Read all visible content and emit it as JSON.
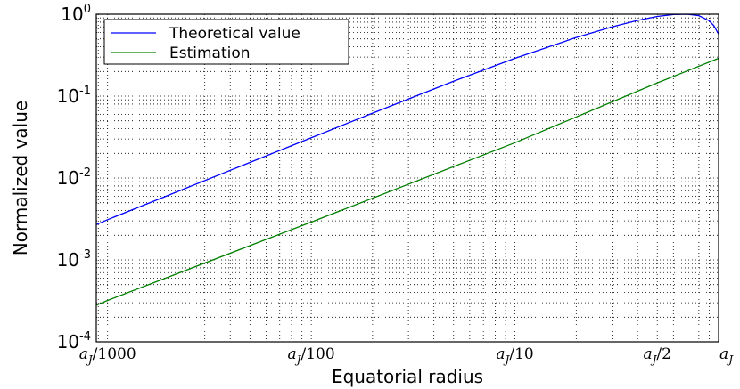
{
  "chart_data": {
    "type": "line",
    "xlabel": "Equatorial radius",
    "ylabel": "Normalized value",
    "x_scale": "log",
    "y_scale": "log",
    "xlim": [
      0.00088,
      1.0
    ],
    "ylim": [
      0.0001,
      1.0
    ],
    "grid": true,
    "grid_style": "dotted",
    "legend_position": "top-left",
    "x_ticks": [
      {
        "value": 0.001,
        "base": "a",
        "sub": "J",
        "suffix": "/1000"
      },
      {
        "value": 0.01,
        "base": "a",
        "sub": "J",
        "suffix": "/100"
      },
      {
        "value": 0.1,
        "base": "a",
        "sub": "J",
        "suffix": "/10"
      },
      {
        "value": 0.5,
        "base": "a",
        "sub": "J",
        "suffix": "/2"
      },
      {
        "value": 1.0,
        "base": "a",
        "sub": "J",
        "suffix": ""
      }
    ],
    "y_ticks": [
      {
        "value": 0.0001,
        "mantissa": "10",
        "exponent": "-4"
      },
      {
        "value": 0.001,
        "mantissa": "10",
        "exponent": "-3"
      },
      {
        "value": 0.01,
        "mantissa": "10",
        "exponent": "-2"
      },
      {
        "value": 0.1,
        "mantissa": "10",
        "exponent": "-1"
      },
      {
        "value": 1.0,
        "mantissa": "10",
        "exponent": "0"
      }
    ],
    "series": [
      {
        "name": "Theoretical value",
        "color": "#0000ff",
        "x": [
          0.00088,
          0.001,
          0.002,
          0.005,
          0.01,
          0.02,
          0.05,
          0.1,
          0.2,
          0.3,
          0.4,
          0.5,
          0.6,
          0.7,
          0.8,
          0.9,
          0.95,
          1.0
        ],
        "y": [
          0.0027,
          0.0031,
          0.0062,
          0.0155,
          0.031,
          0.062,
          0.152,
          0.29,
          0.52,
          0.7,
          0.84,
          0.94,
          0.99,
          1.0,
          0.96,
          0.83,
          0.72,
          0.57
        ]
      },
      {
        "name": "Estimation",
        "color": "#008000",
        "x": [
          0.00088,
          0.001,
          0.01,
          0.1,
          0.5,
          1.0
        ],
        "y": [
          0.00028,
          0.00032,
          0.0029,
          0.027,
          0.145,
          0.29
        ]
      }
    ]
  }
}
